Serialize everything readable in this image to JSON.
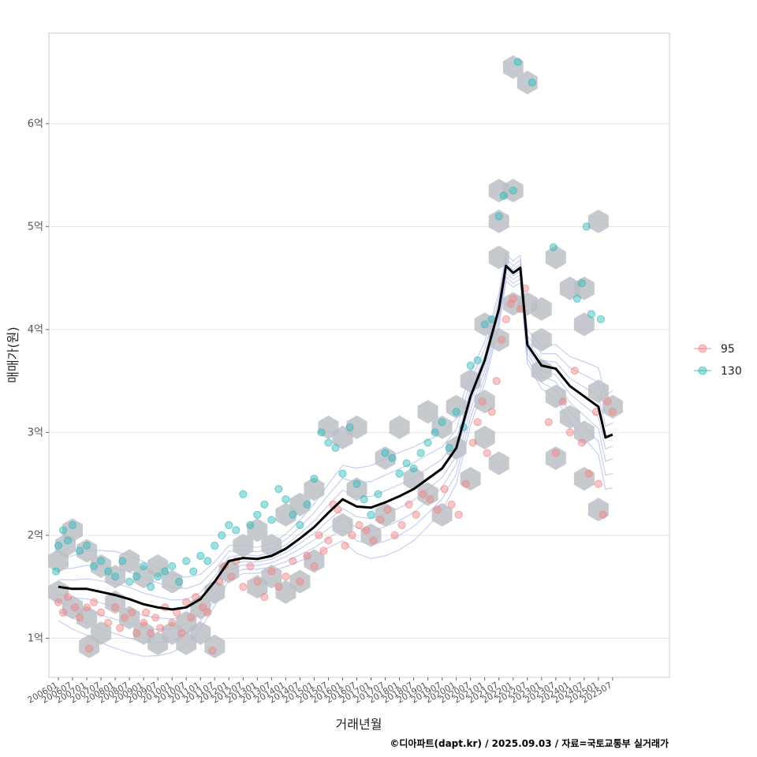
{
  "chart_data": {
    "type": "scatter",
    "xlabel": "거래년월",
    "ylabel": "매매가(원)",
    "credit": "©디아파트(dapt.kr) / 2025.09.03 / 자료=국토교통부 실거래가",
    "x_range": [
      "2005-09",
      "2027-07"
    ],
    "y_range": [
      0.62,
      6.88
    ],
    "y_unit": "억",
    "grid": true,
    "legend_position": "right",
    "y_ticks": [
      {
        "value": 1,
        "label": "1억"
      },
      {
        "value": 2,
        "label": "2억"
      },
      {
        "value": 3,
        "label": "3억"
      },
      {
        "value": 4,
        "label": "4억"
      },
      {
        "value": 5,
        "label": "5억"
      },
      {
        "value": 6,
        "label": "6억"
      }
    ],
    "x_ticks": [
      "200601",
      "200607",
      "200701",
      "200707",
      "200801",
      "200807",
      "200901",
      "200907",
      "201001",
      "201007",
      "201101",
      "201107",
      "201201",
      "201207",
      "201301",
      "201307",
      "201401",
      "201407",
      "201501",
      "201507",
      "201601",
      "201607",
      "201701",
      "201707",
      "201801",
      "201807",
      "201901",
      "201907",
      "202001",
      "202007",
      "202101",
      "202107",
      "202201",
      "202207",
      "202301",
      "202307",
      "202401",
      "202407",
      "202501",
      "202507"
    ],
    "series": [
      {
        "name": "95",
        "color": "#f08080",
        "points": [
          [
            "2006-01",
            1.35
          ],
          [
            "2006-03",
            1.25
          ],
          [
            "2006-05",
            1.4
          ],
          [
            "2006-08",
            1.3
          ],
          [
            "2006-10",
            1.2
          ],
          [
            "2007-01",
            1.3
          ],
          [
            "2007-02",
            0.9
          ],
          [
            "2007-04",
            1.35
          ],
          [
            "2007-07",
            1.25
          ],
          [
            "2007-10",
            1.15
          ],
          [
            "2008-01",
            1.3
          ],
          [
            "2008-03",
            1.1
          ],
          [
            "2008-05",
            1.2
          ],
          [
            "2008-08",
            1.25
          ],
          [
            "2008-10",
            1.05
          ],
          [
            "2009-01",
            1.15
          ],
          [
            "2009-02",
            1.25
          ],
          [
            "2009-04",
            1.05
          ],
          [
            "2009-06",
            1.2
          ],
          [
            "2009-08",
            1.1
          ],
          [
            "2009-10",
            1.3
          ],
          [
            "2010-01",
            1.15
          ],
          [
            "2010-03",
            1.25
          ],
          [
            "2010-05",
            1.05
          ],
          [
            "2010-07",
            1.35
          ],
          [
            "2010-09",
            1.2
          ],
          [
            "2010-11",
            1.4
          ],
          [
            "2011-02",
            1.3
          ],
          [
            "2011-04",
            1.25
          ],
          [
            "2011-06",
            0.88
          ],
          [
            "2011-09",
            1.55
          ],
          [
            "2011-11",
            1.7
          ],
          [
            "2012-02",
            1.6
          ],
          [
            "2012-04",
            1.75
          ],
          [
            "2012-07",
            1.5
          ],
          [
            "2012-10",
            1.7
          ],
          [
            "2013-01",
            1.55
          ],
          [
            "2013-04",
            1.4
          ],
          [
            "2013-07",
            1.65
          ],
          [
            "2013-10",
            1.5
          ],
          [
            "2014-01",
            1.6
          ],
          [
            "2014-04",
            1.75
          ],
          [
            "2014-07",
            1.55
          ],
          [
            "2014-10",
            1.8
          ],
          [
            "2015-01",
            1.7
          ],
          [
            "2015-03",
            2.0
          ],
          [
            "2015-05",
            1.85
          ],
          [
            "2015-07",
            1.95
          ],
          [
            "2015-09",
            2.3
          ],
          [
            "2015-11",
            2.25
          ],
          [
            "2016-02",
            1.9
          ],
          [
            "2016-05",
            2.0
          ],
          [
            "2016-08",
            2.1
          ],
          [
            "2016-11",
            2.05
          ],
          [
            "2017-02",
            1.95
          ],
          [
            "2017-05",
            2.15
          ],
          [
            "2017-08",
            2.25
          ],
          [
            "2017-11",
            2.0
          ],
          [
            "2018-02",
            2.1
          ],
          [
            "2018-05",
            2.3
          ],
          [
            "2018-08",
            2.2
          ],
          [
            "2018-11",
            2.4
          ],
          [
            "2019-02",
            2.35
          ],
          [
            "2019-05",
            2.25
          ],
          [
            "2019-08",
            2.45
          ],
          [
            "2019-11",
            2.3
          ],
          [
            "2020-02",
            2.2
          ],
          [
            "2020-05",
            2.5
          ],
          [
            "2020-08",
            2.9
          ],
          [
            "2020-10",
            3.1
          ],
          [
            "2020-12",
            3.3
          ],
          [
            "2021-02",
            2.8
          ],
          [
            "2021-04",
            3.2
          ],
          [
            "2021-06",
            3.5
          ],
          [
            "2021-08",
            3.9
          ],
          [
            "2021-10",
            4.1
          ],
          [
            "2021-12",
            4.25
          ],
          [
            "2022-01",
            4.3
          ],
          [
            "2022-04",
            4.2
          ],
          [
            "2022-06",
            4.4
          ],
          [
            "2023-04",
            3.1
          ],
          [
            "2023-07",
            2.8
          ],
          [
            "2023-10",
            3.3
          ],
          [
            "2024-01",
            3.0
          ],
          [
            "2024-03",
            3.6
          ],
          [
            "2024-06",
            2.9
          ],
          [
            "2024-09",
            2.6
          ],
          [
            "2024-12",
            3.2
          ],
          [
            "2025-01",
            2.5
          ],
          [
            "2025-03",
            2.2
          ],
          [
            "2025-05",
            3.3
          ],
          [
            "2025-07",
            3.2
          ]
        ]
      },
      {
        "name": "130",
        "color": "#2ab7b7",
        "points": [
          [
            "2005-12",
            1.65
          ],
          [
            "2006-01",
            1.9
          ],
          [
            "2006-03",
            2.05
          ],
          [
            "2006-05",
            1.95
          ],
          [
            "2006-07",
            2.1
          ],
          [
            "2006-10",
            1.85
          ],
          [
            "2007-01",
            1.9
          ],
          [
            "2007-04",
            1.7
          ],
          [
            "2007-07",
            1.75
          ],
          [
            "2007-10",
            1.65
          ],
          [
            "2008-01",
            1.6
          ],
          [
            "2008-04",
            1.75
          ],
          [
            "2008-07",
            1.55
          ],
          [
            "2008-10",
            1.6
          ],
          [
            "2009-01",
            1.7
          ],
          [
            "2009-04",
            1.5
          ],
          [
            "2009-07",
            1.6
          ],
          [
            "2009-10",
            1.65
          ],
          [
            "2010-01",
            1.7
          ],
          [
            "2010-04",
            1.55
          ],
          [
            "2010-07",
            1.75
          ],
          [
            "2010-10",
            1.65
          ],
          [
            "2011-01",
            1.8
          ],
          [
            "2011-04",
            1.75
          ],
          [
            "2011-07",
            1.9
          ],
          [
            "2011-10",
            2.0
          ],
          [
            "2012-01",
            2.1
          ],
          [
            "2012-04",
            2.05
          ],
          [
            "2012-07",
            2.4
          ],
          [
            "2012-10",
            2.1
          ],
          [
            "2013-01",
            2.2
          ],
          [
            "2013-04",
            2.3
          ],
          [
            "2013-07",
            2.15
          ],
          [
            "2013-10",
            2.45
          ],
          [
            "2014-01",
            2.35
          ],
          [
            "2014-04",
            2.2
          ],
          [
            "2014-07",
            2.1
          ],
          [
            "2014-10",
            2.3
          ],
          [
            "2015-01",
            2.55
          ],
          [
            "2015-04",
            3.0
          ],
          [
            "2015-07",
            2.9
          ],
          [
            "2015-10",
            2.85
          ],
          [
            "2016-01",
            2.6
          ],
          [
            "2016-04",
            3.05
          ],
          [
            "2016-07",
            2.5
          ],
          [
            "2016-10",
            2.35
          ],
          [
            "2017-01",
            2.2
          ],
          [
            "2017-04",
            2.4
          ],
          [
            "2017-07",
            2.8
          ],
          [
            "2017-10",
            2.75
          ],
          [
            "2018-01",
            2.6
          ],
          [
            "2018-04",
            2.7
          ],
          [
            "2018-07",
            2.65
          ],
          [
            "2018-10",
            2.8
          ],
          [
            "2019-01",
            2.9
          ],
          [
            "2019-04",
            3.0
          ],
          [
            "2019-07",
            3.1
          ],
          [
            "2019-10",
            2.85
          ],
          [
            "2020-01",
            3.2
          ],
          [
            "2020-04",
            3.05
          ],
          [
            "2020-07",
            3.65
          ],
          [
            "2020-10",
            3.7
          ],
          [
            "2021-01",
            4.05
          ],
          [
            "2021-04",
            4.1
          ],
          [
            "2021-07",
            5.1
          ],
          [
            "2021-09",
            5.3
          ],
          [
            "2022-01",
            5.35
          ],
          [
            "2022-03",
            6.6
          ],
          [
            "2022-09",
            6.4
          ],
          [
            "2023-06",
            4.8
          ],
          [
            "2024-04",
            4.3
          ],
          [
            "2024-06",
            4.45
          ],
          [
            "2024-08",
            5.0
          ],
          [
            "2024-10",
            4.15
          ],
          [
            "2025-02",
            4.1
          ]
        ]
      }
    ],
    "trend_line": {
      "color": "#000000",
      "points": [
        [
          "2006-01",
          1.5
        ],
        [
          "2006-07",
          1.48
        ],
        [
          "2007-01",
          1.48
        ],
        [
          "2007-07",
          1.45
        ],
        [
          "2008-01",
          1.42
        ],
        [
          "2008-07",
          1.38
        ],
        [
          "2009-01",
          1.33
        ],
        [
          "2009-07",
          1.3
        ],
        [
          "2010-01",
          1.28
        ],
        [
          "2010-07",
          1.3
        ],
        [
          "2011-01",
          1.38
        ],
        [
          "2011-07",
          1.55
        ],
        [
          "2012-01",
          1.75
        ],
        [
          "2012-07",
          1.78
        ],
        [
          "2013-01",
          1.77
        ],
        [
          "2013-07",
          1.8
        ],
        [
          "2014-01",
          1.87
        ],
        [
          "2014-07",
          1.97
        ],
        [
          "2015-01",
          2.08
        ],
        [
          "2015-07",
          2.22
        ],
        [
          "2016-01",
          2.35
        ],
        [
          "2016-07",
          2.28
        ],
        [
          "2017-01",
          2.27
        ],
        [
          "2017-07",
          2.32
        ],
        [
          "2018-01",
          2.38
        ],
        [
          "2018-07",
          2.45
        ],
        [
          "2019-01",
          2.55
        ],
        [
          "2019-07",
          2.65
        ],
        [
          "2020-01",
          2.85
        ],
        [
          "2020-07",
          3.35
        ],
        [
          "2021-01",
          3.7
        ],
        [
          "2021-07",
          4.2
        ],
        [
          "2021-10",
          4.62
        ],
        [
          "2022-01",
          4.55
        ],
        [
          "2022-04",
          4.6
        ],
        [
          "2022-07",
          3.85
        ],
        [
          "2023-01",
          3.65
        ],
        [
          "2023-07",
          3.62
        ],
        [
          "2024-01",
          3.45
        ],
        [
          "2024-07",
          3.35
        ],
        [
          "2025-01",
          3.25
        ],
        [
          "2025-04",
          2.95
        ],
        [
          "2025-07",
          2.98
        ]
      ]
    },
    "hexbin_cells": [
      [
        "2006-01",
        1.75
      ],
      [
        "2006-04",
        1.9
      ],
      [
        "2006-07",
        2.05
      ],
      [
        "2007-01",
        1.85
      ],
      [
        "2007-07",
        1.7
      ],
      [
        "2006-01",
        1.45
      ],
      [
        "2006-07",
        1.3
      ],
      [
        "2007-01",
        1.2
      ],
      [
        "2007-07",
        1.05
      ],
      [
        "2007-02",
        0.92
      ],
      [
        "2008-01",
        1.35
      ],
      [
        "2008-07",
        1.2
      ],
      [
        "2008-01",
        1.6
      ],
      [
        "2008-07",
        1.75
      ],
      [
        "2009-01",
        1.6
      ],
      [
        "2009-07",
        1.7
      ],
      [
        "2010-01",
        1.55
      ],
      [
        "2009-01",
        1.05
      ],
      [
        "2009-07",
        0.95
      ],
      [
        "2010-01",
        1.05
      ],
      [
        "2010-07",
        1.15
      ],
      [
        "2011-01",
        1.3
      ],
      [
        "2011-07",
        1.45
      ],
      [
        "2010-07",
        0.95
      ],
      [
        "2011-01",
        1.05
      ],
      [
        "2011-07",
        0.92
      ],
      [
        "2012-01",
        1.65
      ],
      [
        "2012-07",
        1.9
      ],
      [
        "2013-01",
        2.05
      ],
      [
        "2013-07",
        1.9
      ],
      [
        "2014-01",
        2.2
      ],
      [
        "2014-07",
        2.3
      ],
      [
        "2015-01",
        2.45
      ],
      [
        "2013-01",
        1.5
      ],
      [
        "2013-07",
        1.6
      ],
      [
        "2014-01",
        1.45
      ],
      [
        "2014-07",
        1.55
      ],
      [
        "2015-01",
        1.75
      ],
      [
        "2015-07",
        3.05
      ],
      [
        "2016-01",
        2.95
      ],
      [
        "2016-07",
        3.05
      ],
      [
        "2016-01",
        2.1
      ],
      [
        "2016-07",
        2.45
      ],
      [
        "2017-01",
        2.0
      ],
      [
        "2017-07",
        2.2
      ],
      [
        "2018-01",
        3.05
      ],
      [
        "2017-07",
        2.75
      ],
      [
        "2018-07",
        2.55
      ],
      [
        "2019-01",
        2.4
      ],
      [
        "2019-07",
        2.2
      ],
      [
        "2019-01",
        3.2
      ],
      [
        "2019-07",
        3.05
      ],
      [
        "2020-01",
        2.85
      ],
      [
        "2020-07",
        2.55
      ],
      [
        "2020-01",
        3.25
      ],
      [
        "2020-07",
        3.5
      ],
      [
        "2021-01",
        3.3
      ],
      [
        "2021-01",
        2.95
      ],
      [
        "2021-07",
        2.7
      ],
      [
        "2021-07",
        3.9
      ],
      [
        "2021-01",
        4.05
      ],
      [
        "2021-07",
        4.7
      ],
      [
        "2021-07",
        5.05
      ],
      [
        "2021-07",
        5.35
      ],
      [
        "2022-01",
        5.35
      ],
      [
        "2022-01",
        6.55
      ],
      [
        "2022-07",
        6.4
      ],
      [
        "2022-01",
        4.25
      ],
      [
        "2022-07",
        4.25
      ],
      [
        "2023-01",
        4.2
      ],
      [
        "2023-01",
        3.9
      ],
      [
        "2023-01",
        3.6
      ],
      [
        "2023-07",
        4.7
      ],
      [
        "2023-07",
        3.35
      ],
      [
        "2023-07",
        2.75
      ],
      [
        "2024-01",
        3.15
      ],
      [
        "2024-01",
        4.4
      ],
      [
        "2024-07",
        4.4
      ],
      [
        "2024-07",
        4.05
      ],
      [
        "2024-07",
        3.0
      ],
      [
        "2024-07",
        2.55
      ],
      [
        "2025-01",
        2.25
      ],
      [
        "2025-01",
        3.4
      ],
      [
        "2025-01",
        5.05
      ],
      [
        "2025-07",
        3.25
      ]
    ]
  }
}
